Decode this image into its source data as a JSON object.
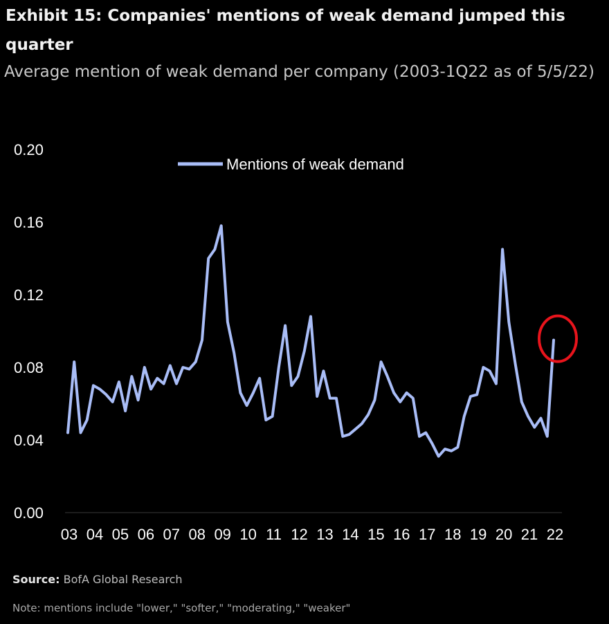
{
  "title": "Exhibit 15: Companies' mentions of weak demand jumped this quarter",
  "subtitle": "Average mention of weak demand per company (2003-1Q22 as of 5/5/22)",
  "source_label": "Source:",
  "source_text": "BofA Global Research",
  "note": "Note: mentions include \"lower,\" \"softer,\" \"moderating,\" \"weaker\"",
  "colors": {
    "background": "#000000",
    "line": "#a9bdf7",
    "highlight": "#e8141c",
    "text": "#ffffff"
  },
  "chart_data": {
    "type": "line",
    "x_tick_labels": [
      "03",
      "04",
      "05",
      "06",
      "07",
      "08",
      "09",
      "10",
      "11",
      "12",
      "13",
      "14",
      "15",
      "16",
      "17",
      "18",
      "19",
      "20",
      "21",
      "22"
    ],
    "y_tick_labels": [
      "0.00",
      "0.04",
      "0.08",
      "0.12",
      "0.16",
      "0.20"
    ],
    "ylim": [
      0,
      0.2
    ],
    "xlim": [
      2003,
      2022
    ],
    "legend_position": "top-center",
    "annotation": "red circle highlighting the latest data point (1Q22)",
    "series": [
      {
        "name": "Mentions  of weak demand",
        "x": [
          2003.0,
          2003.25,
          2003.5,
          2003.75,
          2004.0,
          2004.25,
          2004.5,
          2004.75,
          2005.0,
          2005.25,
          2005.5,
          2005.75,
          2006.0,
          2006.25,
          2006.5,
          2006.75,
          2007.0,
          2007.25,
          2007.5,
          2007.75,
          2008.0,
          2008.25,
          2008.5,
          2008.75,
          2009.0,
          2009.25,
          2009.5,
          2009.75,
          2010.0,
          2010.25,
          2010.5,
          2010.75,
          2011.0,
          2011.25,
          2011.5,
          2011.75,
          2012.0,
          2012.25,
          2012.5,
          2012.75,
          2013.0,
          2013.25,
          2013.5,
          2013.75,
          2014.0,
          2014.25,
          2014.5,
          2014.75,
          2015.0,
          2015.25,
          2015.5,
          2015.75,
          2016.0,
          2016.25,
          2016.5,
          2016.75,
          2017.0,
          2017.25,
          2017.5,
          2017.75,
          2018.0,
          2018.25,
          2018.5,
          2018.75,
          2019.0,
          2019.25,
          2019.5,
          2019.75,
          2020.0,
          2020.25,
          2020.5,
          2020.75,
          2021.0,
          2021.25,
          2021.5,
          2021.75,
          2022.0
        ],
        "values": [
          0.044,
          0.083,
          0.044,
          0.051,
          0.07,
          0.068,
          0.065,
          0.061,
          0.072,
          0.056,
          0.075,
          0.062,
          0.08,
          0.068,
          0.074,
          0.071,
          0.081,
          0.071,
          0.08,
          0.079,
          0.083,
          0.095,
          0.14,
          0.145,
          0.158,
          0.105,
          0.088,
          0.066,
          0.059,
          0.066,
          0.074,
          0.051,
          0.053,
          0.08,
          0.103,
          0.07,
          0.075,
          0.089,
          0.108,
          0.064,
          0.078,
          0.063,
          0.063,
          0.042,
          0.043,
          0.046,
          0.049,
          0.054,
          0.062,
          0.083,
          0.075,
          0.066,
          0.061,
          0.066,
          0.063,
          0.042,
          0.044,
          0.038,
          0.031,
          0.035,
          0.034,
          0.036,
          0.053,
          0.064,
          0.065,
          0.08,
          0.078,
          0.071,
          0.145,
          0.105,
          0.082,
          0.061,
          0.053,
          0.047,
          0.052,
          0.042,
          0.095
        ]
      }
    ]
  }
}
